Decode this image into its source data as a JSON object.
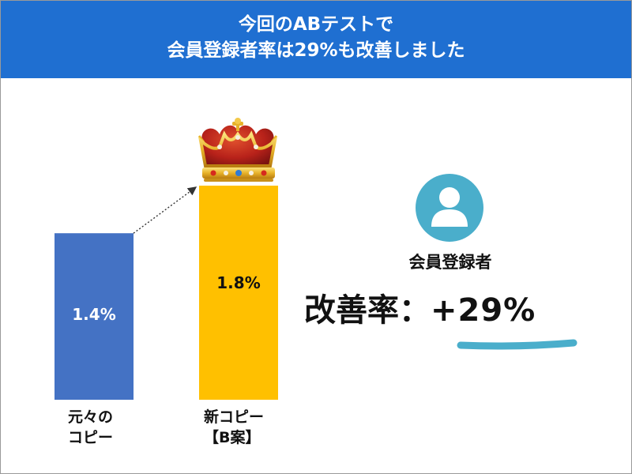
{
  "header": {
    "line1": "今回のABテストで",
    "line2": "会員登録者率は29%も改善しました",
    "background": "#1f6fd1"
  },
  "chart_data": {
    "type": "bar",
    "categories": [
      "元々のコピー",
      "新コピー【B案】"
    ],
    "category_lines": [
      [
        "元々の",
        "コピー"
      ],
      [
        "新コピー",
        "【B案】"
      ]
    ],
    "values": [
      1.4,
      1.8
    ],
    "data_labels": [
      "1.4%",
      "1.8%"
    ],
    "colors": [
      "#4472c4",
      "#ffc000"
    ],
    "ylim": [
      0,
      1.8
    ],
    "xlabel": "",
    "ylabel": "",
    "grid": false,
    "annotations": [
      "arrow from original bar to new bar",
      "crown above winning bar"
    ]
  },
  "metric": {
    "icon": "user-icon",
    "icon_color": "#4aaecb",
    "title": "会員登録者",
    "label": "改善率：",
    "value": "+29%",
    "underline_color": "#4aaecb"
  }
}
